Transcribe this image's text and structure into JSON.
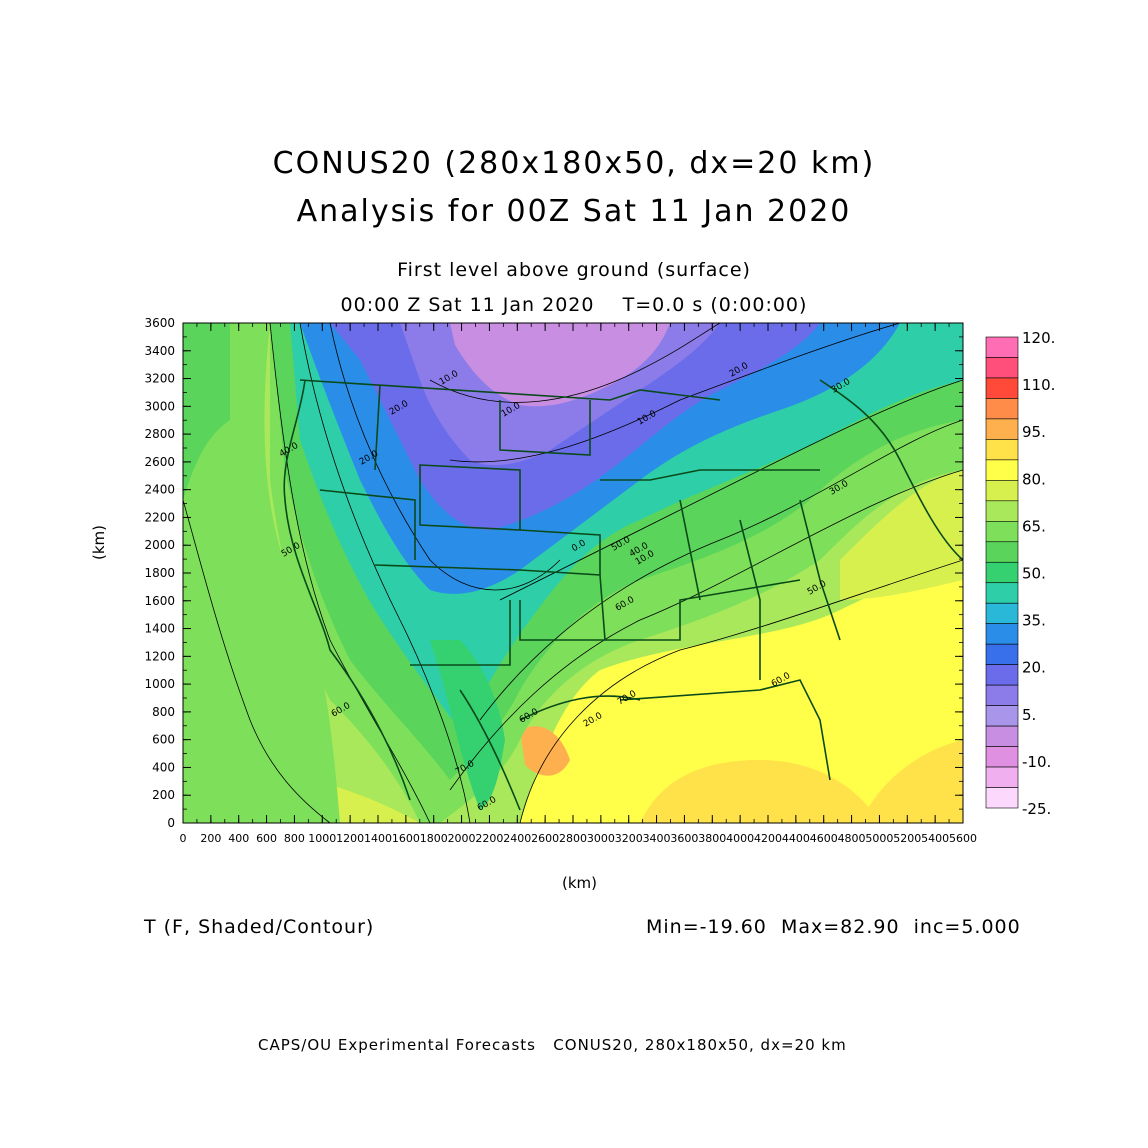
{
  "title": {
    "line1": "CONUS20 (280x180x50, dx=20 km)",
    "line2": "Analysis for 00Z Sat 11 Jan 2020"
  },
  "subtitle": {
    "line1": "First level above ground (surface)",
    "line2": "00:00 Z Sat 11 Jan 2020    T=0.0 s (0:00:00)"
  },
  "axes": {
    "x_label": "(km)",
    "y_label": "(km)",
    "x_ticks": [
      "0",
      "200",
      "400",
      "600",
      "800",
      "1000",
      "1200",
      "1400",
      "1600",
      "1800",
      "2000",
      "2200",
      "2400",
      "2600",
      "2800",
      "3000",
      "3200",
      "3400",
      "3600",
      "3800",
      "4000",
      "4200",
      "4400",
      "4600",
      "4800",
      "5000",
      "5200",
      "5400",
      "5600"
    ],
    "y_ticks": [
      "0",
      "200",
      "400",
      "600",
      "800",
      "1000",
      "1200",
      "1400",
      "1600",
      "1800",
      "2000",
      "2200",
      "2400",
      "2600",
      "2800",
      "3000",
      "3200",
      "3400",
      "3600"
    ],
    "x_range": [
      0,
      5600
    ],
    "y_range": [
      0,
      3600
    ]
  },
  "colorbar": {
    "labels": [
      "120.",
      "110.",
      "95.",
      "80.",
      "65.",
      "50.",
      "35.",
      "20.",
      "5.",
      "-10.",
      "-25."
    ],
    "colors": [
      "#ff6eb4",
      "#ff4f7a",
      "#ff4a3a",
      "#ff8c48",
      "#ffb04e",
      "#ffe24a",
      "#ffff4a",
      "#d8f04e",
      "#a8e85a",
      "#7ee05a",
      "#5ad45a",
      "#35d070",
      "#2ecfa8",
      "#2ab8d8",
      "#2a8ee8",
      "#3870ec",
      "#6a6cea",
      "#8c7cea",
      "#a996ea",
      "#c88ee2",
      "#e090e0",
      "#f0b0f0",
      "#fcd8fc"
    ]
  },
  "variable": "T (F, Shaded/Contour)",
  "stats": "Min=-19.60  Max=82.90  inc=5.000",
  "footer": "CAPS/OU Experimental Forecasts   CONUS20, 280x180x50, dx=20 km",
  "contour_labels": [
    "10.0",
    "20.0",
    "20.0",
    "10.0",
    "10.0",
    "20.0",
    "30.0",
    "40.0",
    "50.0",
    "60.0",
    "60.0",
    "70.0",
    "60.0",
    "50.0",
    "40.0",
    "50.0",
    "60.0",
    "70.0",
    "60.0",
    "20.0",
    "0.0",
    "10.0",
    "30.0"
  ]
}
